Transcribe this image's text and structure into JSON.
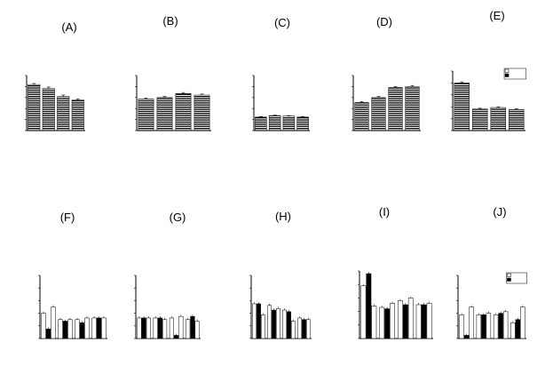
{
  "chart_data": [
    {
      "panel": "(A)",
      "type": "bar",
      "categories": [
        "",
        "",
        "",
        ""
      ],
      "values": [
        92,
        84,
        68,
        61
      ],
      "errors": [
        2,
        3,
        3,
        2
      ],
      "fills": [
        "hatch",
        "hatch",
        "hatch",
        "hatch"
      ],
      "ylim": [
        0,
        110
      ],
      "xlabel": "",
      "ylabel": "",
      "legend": []
    },
    {
      "panel": "(B)",
      "type": "bar",
      "categories": [
        "",
        "",
        "",
        ""
      ],
      "values": [
        63,
        66,
        74,
        71
      ],
      "errors": [
        2,
        2,
        2,
        2
      ],
      "fills": [
        "hatch",
        "hatch",
        "hatch",
        "hatch"
      ],
      "ylim": [
        0,
        110
      ],
      "xlabel": "",
      "ylabel": "",
      "legend": []
    },
    {
      "panel": "(C)",
      "type": "bar",
      "categories": [
        "",
        "",
        "",
        ""
      ],
      "values": [
        27,
        30,
        29,
        27
      ],
      "errors": [
        1,
        1,
        1,
        1
      ],
      "fills": [
        "hatch",
        "hatch",
        "hatch",
        "hatch"
      ],
      "ylim": [
        0,
        110
      ],
      "xlabel": "",
      "ylabel": "",
      "legend": []
    },
    {
      "panel": "(D)",
      "type": "bar",
      "categories": [
        "",
        "",
        "",
        ""
      ],
      "values": [
        56,
        66,
        86,
        88
      ],
      "errors": [
        2,
        2,
        2,
        2
      ],
      "fills": [
        "hatch",
        "hatch",
        "hatch",
        "hatch"
      ],
      "ylim": [
        0,
        110
      ],
      "xlabel": "",
      "ylabel": "",
      "legend": []
    },
    {
      "panel": "(E)",
      "type": "bar",
      "categories": [
        "",
        "",
        "",
        ""
      ],
      "values": [
        128,
        58,
        62,
        57
      ],
      "errors": [
        3,
        2,
        2,
        2
      ],
      "fills": [
        "hatch",
        "hatch",
        "hatch",
        "hatch"
      ],
      "ylim": [
        0,
        160
      ],
      "xlabel": "",
      "ylabel": "",
      "legend": [
        {
          "label": "",
          "fill": "white"
        },
        {
          "label": "",
          "fill": "black"
        }
      ]
    },
    {
      "panel": "(F)",
      "type": "bar",
      "categories": [
        "",
        "",
        "",
        ""
      ],
      "series": [
        {
          "values": [
            16,
            12,
            12,
            13
          ],
          "fill": "white"
        },
        {
          "values": [
            6,
            11,
            10,
            13
          ],
          "fill": "black"
        },
        {
          "values": [
            20,
            12,
            13,
            13
          ],
          "fill": "white"
        }
      ],
      "ylim": [
        0,
        40
      ],
      "xlabel": "",
      "ylabel": "",
      "legend": []
    },
    {
      "panel": "(G)",
      "type": "bar",
      "categories": [
        "",
        "",
        "",
        ""
      ],
      "series": [
        {
          "values": [
            13,
            13,
            13,
            12
          ],
          "fill": "white"
        },
        {
          "values": [
            13,
            13,
            2,
            14
          ],
          "fill": "black"
        },
        {
          "values": [
            13,
            12,
            14,
            11
          ],
          "fill": "white"
        }
      ],
      "ylim": [
        0,
        40
      ],
      "xlabel": "",
      "ylabel": "",
      "legend": []
    },
    {
      "panel": "(H)",
      "type": "bar",
      "categories": [
        "",
        "",
        "",
        ""
      ],
      "series": [
        {
          "values": [
            22,
            21,
            18,
            13
          ],
          "fill": "white"
        },
        {
          "values": [
            22,
            18,
            17,
            12
          ],
          "fill": "black"
        },
        {
          "values": [
            15,
            19,
            11,
            12
          ],
          "fill": "white"
        }
      ],
      "ylim": [
        0,
        40
      ],
      "xlabel": "",
      "ylabel": "",
      "legend": []
    },
    {
      "panel": "(I)",
      "type": "bar",
      "categories": [
        "",
        "",
        "",
        ""
      ],
      "series": [
        {
          "values": [
            39,
            23,
            28,
            25
          ],
          "fill": "white"
        },
        {
          "values": [
            48,
            22,
            25,
            25
          ],
          "fill": "black"
        },
        {
          "values": [
            24,
            26,
            30,
            26
          ],
          "fill": "white"
        }
      ],
      "ylim": [
        0,
        50
      ],
      "xlabel": "",
      "ylabel": "",
      "legend": []
    },
    {
      "panel": "(J)",
      "type": "bar",
      "categories": [
        "",
        "",
        "",
        ""
      ],
      "series": [
        {
          "values": [
            15,
            15,
            15,
            10
          ],
          "fill": "white"
        },
        {
          "values": [
            2,
            15,
            16,
            12
          ],
          "fill": "black"
        },
        {
          "values": [
            20,
            16,
            17,
            20
          ],
          "fill": "white"
        }
      ],
      "ylim": [
        0,
        40
      ],
      "xlabel": "",
      "ylabel": "",
      "legend": [
        {
          "label": "",
          "fill": "white"
        },
        {
          "label": "",
          "fill": "black"
        }
      ]
    }
  ]
}
